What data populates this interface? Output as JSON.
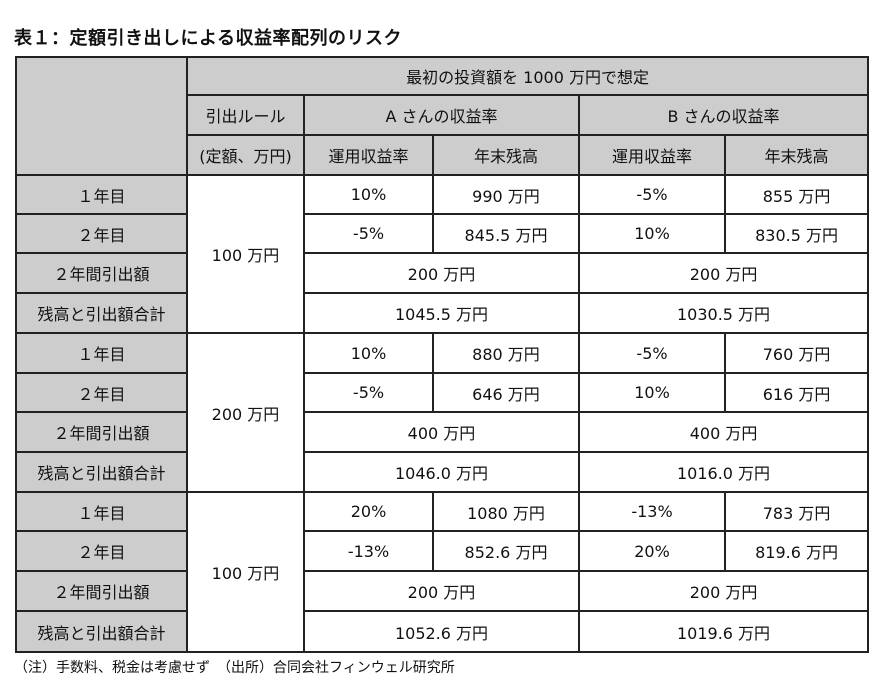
{
  "title": "表１：定額引き出しによる収益率配列のリスク",
  "header": {
    "scenario": "最初の投資額を 1000 万円で想定",
    "rule_line1": "引出ルール",
    "rule_line2": "(定額、万円)",
    "person_a": "A さんの収益率",
    "person_b": "B さんの収益率",
    "a_rate": "運用収益率",
    "a_balance": "年末残高",
    "b_rate": "運用収益率",
    "b_balance": "年末残高"
  },
  "labels": {
    "year1": "１年目",
    "year2": "２年目",
    "total_withdrawal": "２年間引出額",
    "sum": "残高と引出額合計"
  },
  "blocks": [
    {
      "rule": "100 万円",
      "y1": {
        "a_rate": "10%",
        "a_balance": "990 万円",
        "b_rate": "-5%",
        "b_balance": "855 万円"
      },
      "y2": {
        "a_rate": "-5%",
        "a_balance": "845.5 万円",
        "b_rate": "10%",
        "b_balance": "830.5 万円"
      },
      "withdraw_a": "200 万円",
      "withdraw_b": "200 万円",
      "sum_a": "1045.5 万円",
      "sum_b": "1030.5 万円"
    },
    {
      "rule": "200 万円",
      "y1": {
        "a_rate": "10%",
        "a_balance": "880 万円",
        "b_rate": "-5%",
        "b_balance": "760 万円"
      },
      "y2": {
        "a_rate": "-5%",
        "a_balance": "646 万円",
        "b_rate": "10%",
        "b_balance": "616 万円"
      },
      "withdraw_a": "400 万円",
      "withdraw_b": "400 万円",
      "sum_a": "1046.0 万円",
      "sum_b": "1016.0 万円"
    },
    {
      "rule": "100 万円",
      "y1": {
        "a_rate": "20%",
        "a_balance": "1080 万円",
        "b_rate": "-13%",
        "b_balance": "783 万円"
      },
      "y2": {
        "a_rate": "-13%",
        "a_balance": "852.6 万円",
        "b_rate": "20%",
        "b_balance": "819.6 万円"
      },
      "withdraw_a": "200 万円",
      "withdraw_b": "200 万円",
      "sum_a": "1052.6 万円",
      "sum_b": "1019.6 万円"
    }
  ],
  "footnote": "（注）手数料、税金は考慮せず　（出所）合同会社フィンウェル研究所"
}
